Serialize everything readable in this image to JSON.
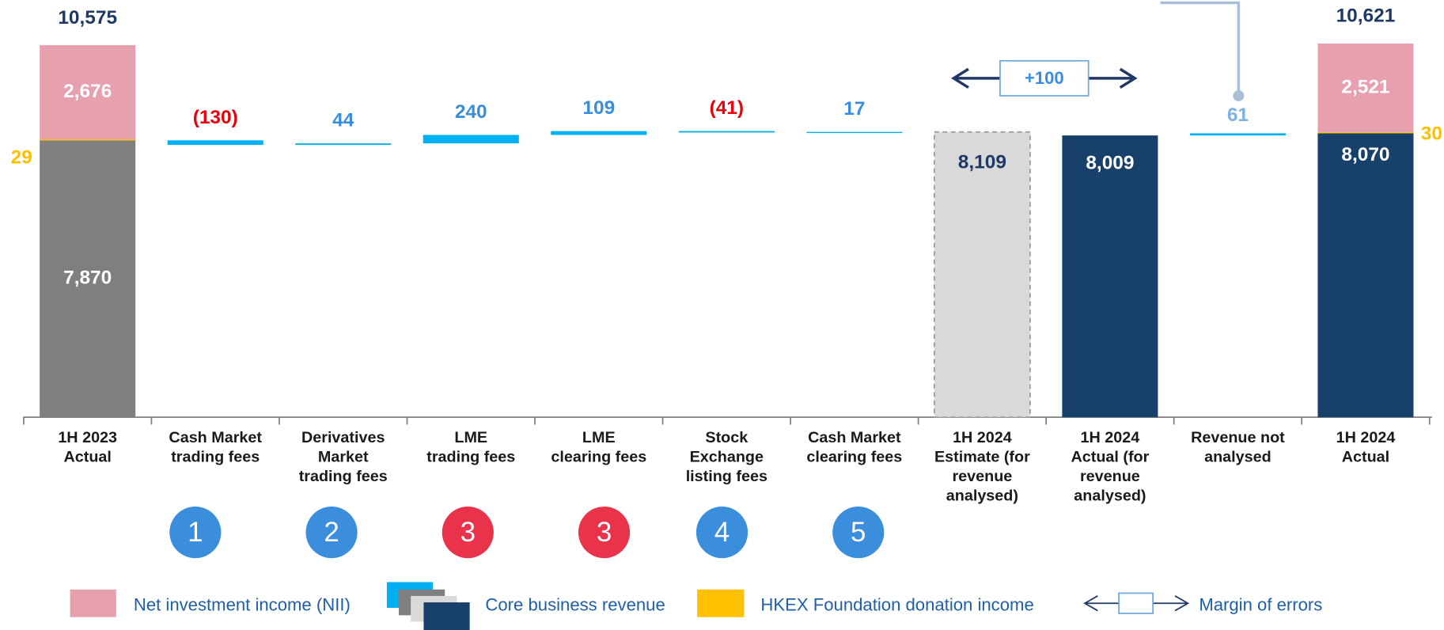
{
  "chart_data": {
    "type": "waterfall",
    "categories": [
      "1H 2023\nActual",
      "Cash Market\ntrading fees",
      "Derivatives\nMarket\ntrading fees",
      "LME\ntrading fees",
      "LME\nclearing fees",
      "Stock\nExchange\nlisting fees",
      "Cash Market\nclearing fees",
      "1H 2024\nEstimate (for\nrevenue\nanalysed)",
      "1H 2024\nActual (for\nrevenue\nanalysed)",
      "Revenue not\nanalysed",
      "1H 2024\nActual"
    ],
    "start_bar": {
      "values": [
        7870,
        29,
        2676
      ],
      "value_labels": [
        "7,870",
        "29",
        "2,676"
      ],
      "colors": [
        "#7f7f7f",
        "#ffc000",
        "#e6a0ae"
      ],
      "label_positions": [
        "center",
        "left",
        "center"
      ],
      "label_colors": [
        "#ffffff",
        "#ffc000",
        "#ffffff"
      ],
      "total": 10575,
      "total_label": "10,575"
    },
    "steps": {
      "values": [
        -130,
        44,
        240,
        109,
        -41,
        17
      ],
      "value_labels": [
        "(130)",
        "44",
        "240",
        "109",
        "(41)",
        "17"
      ],
      "color": "#00b0f0",
      "positive_label_color": "#3a8ddb",
      "negative_label_color": "#e8000b"
    },
    "estimate": {
      "value": 8109,
      "value_label": "8,109",
      "color": "#d9d9d9"
    },
    "actual": {
      "value": 8009,
      "value_label": "8,009",
      "color": "#17406a"
    },
    "margin": {
      "value": 100,
      "value_label": "+100"
    },
    "unanalysed": {
      "value": 61,
      "value_label": "61",
      "label_color": "#7fb2e3"
    },
    "end_bar": {
      "values": [
        8070,
        30,
        2521
      ],
      "value_labels": [
        "8,070",
        "30",
        "2,521"
      ],
      "colors": [
        "#17406a",
        "#ffc000",
        "#e6a0ae"
      ],
      "label_positions": [
        "top",
        "right",
        "center"
      ],
      "label_colors": [
        "#ffffff",
        "#ffc000",
        "#ffffff"
      ],
      "total": 10621,
      "total_label": "10,621"
    },
    "badges": [
      {
        "label": "1",
        "color": "#3b8edb"
      },
      {
        "label": "2",
        "color": "#3b8edb"
      },
      {
        "label": "3",
        "color": "#e8334a"
      },
      {
        "label": "3",
        "color": "#e8334a"
      },
      {
        "label": "4",
        "color": "#3b8edb"
      },
      {
        "label": "5",
        "color": "#3b8edb"
      }
    ],
    "legend": [
      "Net investment income (NII)",
      "Core business revenue",
      "HKEX Foundation donation income",
      "Margin of errors"
    ]
  }
}
